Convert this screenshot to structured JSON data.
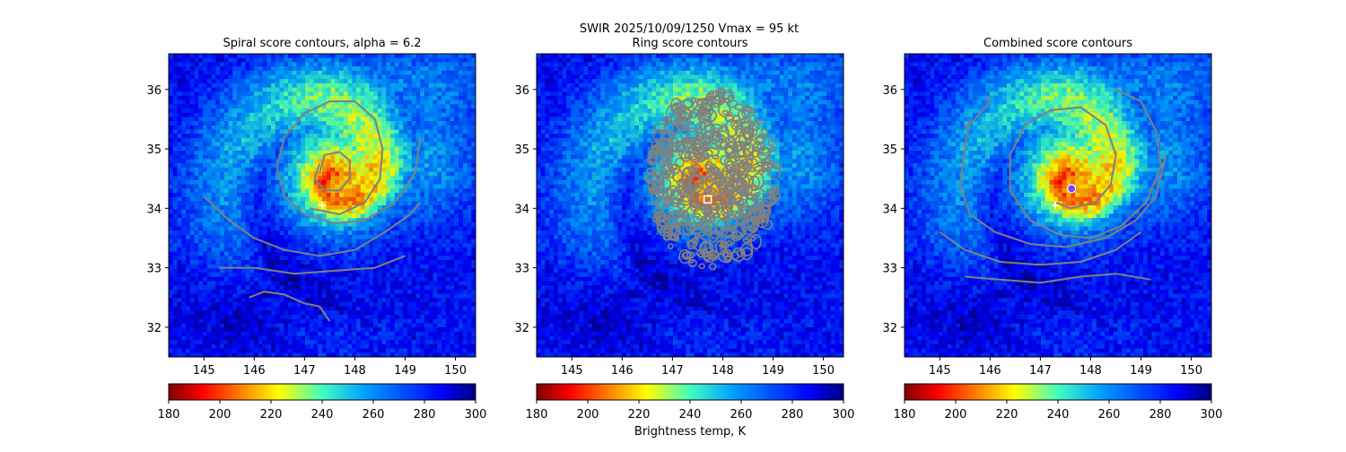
{
  "suptitle": {
    "line1": "SWIR  2025/10/09/1250    Vmax = 95 kt"
  },
  "colorbar": {
    "label": "Brightness temp, K",
    "colormap": "jet_r",
    "range": [
      180,
      300
    ],
    "ticks": [
      180,
      200,
      220,
      240,
      260,
      280,
      300
    ],
    "tick_labels": [
      "180",
      "200",
      "220",
      "240",
      "260",
      "280",
      "300"
    ]
  },
  "chart_data": [
    {
      "type": "heatmap",
      "title": "Spiral score contours, alpha =  6.2",
      "xlim": [
        144.3,
        150.4
      ],
      "ylim": [
        31.5,
        36.6
      ],
      "xticks": [
        145,
        146,
        147,
        148,
        149,
        150
      ],
      "xtick_labels": [
        "145",
        "146",
        "147",
        "148",
        "149",
        "150"
      ],
      "yticks": [
        32,
        33,
        34,
        35,
        36
      ],
      "ytick_labels": [
        "32",
        "33",
        "34",
        "35",
        "36"
      ],
      "value_label": "Brightness temp, K",
      "value_range": [
        180,
        300
      ],
      "storm_center": {
        "lon": 147.6,
        "lat": 34.5
      },
      "markers": [
        {
          "name": "first-guess-center",
          "shape": "plus",
          "color": "#ffffff",
          "lon": 147.35,
          "lat": 34.05
        }
      ],
      "contour_color": "#808080",
      "contour_style": "spiral",
      "overlay_lines": [
        {
          "name": "spiral-arc-outer",
          "points": [
            [
              149.3,
              35.2
            ],
            [
              149.2,
              34.6
            ],
            [
              148.8,
              34.1
            ],
            [
              148.2,
              33.8
            ],
            [
              147.6,
              33.75
            ],
            [
              147.0,
              33.9
            ],
            [
              146.6,
              34.2
            ],
            [
              146.45,
              34.7
            ],
            [
              146.6,
              35.2
            ],
            [
              147.0,
              35.6
            ],
            [
              147.5,
              35.8
            ],
            [
              148.0,
              35.8
            ],
            [
              148.4,
              35.5
            ],
            [
              148.55,
              35.0
            ],
            [
              148.5,
              34.5
            ],
            [
              148.2,
              34.1
            ],
            [
              147.7,
              33.9
            ],
            [
              147.1,
              34.0
            ]
          ]
        },
        {
          "name": "spiral-arc-inner",
          "points": [
            [
              147.3,
              34.6
            ],
            [
              147.4,
              34.9
            ],
            [
              147.7,
              34.95
            ],
            [
              147.9,
              34.8
            ],
            [
              147.9,
              34.5
            ],
            [
              147.7,
              34.3
            ],
            [
              147.4,
              34.3
            ],
            [
              147.2,
              34.5
            ],
            [
              147.3,
              34.75
            ]
          ]
        },
        {
          "name": "spiral-arc-southwest",
          "points": [
            [
              145.0,
              34.2
            ],
            [
              145.5,
              33.8
            ],
            [
              146.0,
              33.5
            ],
            [
              146.6,
              33.3
            ],
            [
              147.3,
              33.2
            ],
            [
              148.0,
              33.3
            ],
            [
              148.6,
              33.6
            ],
            [
              149.1,
              33.9
            ],
            [
              149.3,
              34.1
            ]
          ]
        },
        {
          "name": "spiral-arc-south",
          "points": [
            [
              145.3,
              33.0
            ],
            [
              146.0,
              33.0
            ],
            [
              146.8,
              32.9
            ],
            [
              147.6,
              32.95
            ],
            [
              148.4,
              33.0
            ],
            [
              149.0,
              33.2
            ]
          ]
        },
        {
          "name": "spiral-arc-far-south",
          "points": [
            [
              145.9,
              32.5
            ],
            [
              146.2,
              32.6
            ],
            [
              146.6,
              32.55
            ],
            [
              147.0,
              32.4
            ],
            [
              147.3,
              32.35
            ],
            [
              147.5,
              32.1
            ]
          ]
        }
      ]
    },
    {
      "type": "heatmap",
      "title": "Ring score contours",
      "xlim": [
        144.3,
        150.4
      ],
      "ylim": [
        31.5,
        36.6
      ],
      "xticks": [
        145,
        146,
        147,
        148,
        149,
        150
      ],
      "xtick_labels": [
        "145",
        "146",
        "147",
        "148",
        "149",
        "150"
      ],
      "yticks": [
        32,
        33,
        34,
        35,
        36
      ],
      "ytick_labels": [
        "32",
        "33",
        "34",
        "35",
        "36"
      ],
      "value_label": "Brightness temp, K",
      "value_range": [
        180,
        300
      ],
      "storm_center": {
        "lon": 147.6,
        "lat": 34.5
      },
      "markers": [
        {
          "name": "ring-center",
          "shape": "square",
          "color": "#ffffff",
          "lon": 147.7,
          "lat": 34.15
        }
      ],
      "contour_color": "#808080",
      "contour_style": "ring-cloud",
      "ring_region": {
        "lon": 147.8,
        "lat": 34.5,
        "radius_deg": 1.3
      },
      "overlay_lines": []
    },
    {
      "type": "heatmap",
      "title": "Combined score contours",
      "xlim": [
        144.3,
        150.4
      ],
      "ylim": [
        31.5,
        36.6
      ],
      "xticks": [
        145,
        146,
        147,
        148,
        149,
        150
      ],
      "xtick_labels": [
        "145",
        "146",
        "147",
        "148",
        "149",
        "150"
      ],
      "yticks": [
        32,
        33,
        34,
        35,
        36
      ],
      "ytick_labels": [
        "32",
        "33",
        "34",
        "35",
        "36"
      ],
      "value_label": "Brightness temp, K",
      "value_range": [
        180,
        300
      ],
      "storm_center": {
        "lon": 147.6,
        "lat": 34.5
      },
      "markers": [
        {
          "name": "first-guess-center",
          "shape": "plus",
          "color": "#ffffff",
          "lon": 147.3,
          "lat": 34.05
        },
        {
          "name": "combined-center",
          "shape": "circle",
          "color": "#8040ff",
          "lon": 147.62,
          "lat": 34.33
        }
      ],
      "contour_color": "#808080",
      "contour_style": "spiral",
      "overlay_lines": [
        {
          "name": "spiral-arc-outer",
          "points": [
            [
              148.5,
              36.0
            ],
            [
              149.0,
              35.8
            ],
            [
              149.3,
              35.3
            ],
            [
              149.4,
              34.7
            ],
            [
              149.1,
              34.1
            ],
            [
              148.6,
              33.7
            ],
            [
              148.0,
              33.5
            ],
            [
              147.4,
              33.55
            ],
            [
              146.8,
              33.8
            ],
            [
              146.4,
              34.3
            ],
            [
              146.4,
              34.9
            ],
            [
              146.7,
              35.4
            ],
            [
              147.2,
              35.65
            ],
            [
              147.8,
              35.7
            ],
            [
              148.3,
              35.4
            ],
            [
              148.5,
              34.9
            ],
            [
              148.4,
              34.4
            ],
            [
              148.1,
              34.1
            ],
            [
              147.6,
              34.0
            ],
            [
              147.3,
              34.1
            ]
          ]
        },
        {
          "name": "spiral-arc-west",
          "points": [
            [
              145.6,
              35.5
            ],
            [
              145.5,
              35.0
            ],
            [
              145.4,
              34.4
            ],
            [
              145.6,
              33.9
            ],
            [
              146.1,
              33.6
            ],
            [
              146.8,
              33.4
            ],
            [
              147.5,
              33.35
            ],
            [
              148.3,
              33.5
            ],
            [
              148.9,
              33.8
            ],
            [
              149.3,
              34.2
            ],
            [
              149.5,
              34.9
            ]
          ]
        },
        {
          "name": "spiral-arc-south",
          "points": [
            [
              145.0,
              33.6
            ],
            [
              145.5,
              33.3
            ],
            [
              146.2,
              33.1
            ],
            [
              147.0,
              33.05
            ],
            [
              147.8,
              33.1
            ],
            [
              148.5,
              33.3
            ],
            [
              149.0,
              33.6
            ]
          ]
        },
        {
          "name": "spiral-arc-far-south",
          "points": [
            [
              145.5,
              32.85
            ],
            [
              146.2,
              32.8
            ],
            [
              147.0,
              32.75
            ],
            [
              147.8,
              32.85
            ],
            [
              148.5,
              32.9
            ],
            [
              149.2,
              32.8
            ]
          ]
        },
        {
          "name": "spiral-hook-northwest",
          "points": [
            [
              145.5,
              35.35
            ],
            [
              145.7,
              35.5
            ],
            [
              145.9,
              35.7
            ],
            [
              146.0,
              35.8
            ],
            [
              145.9,
              35.9
            ]
          ]
        }
      ]
    }
  ]
}
